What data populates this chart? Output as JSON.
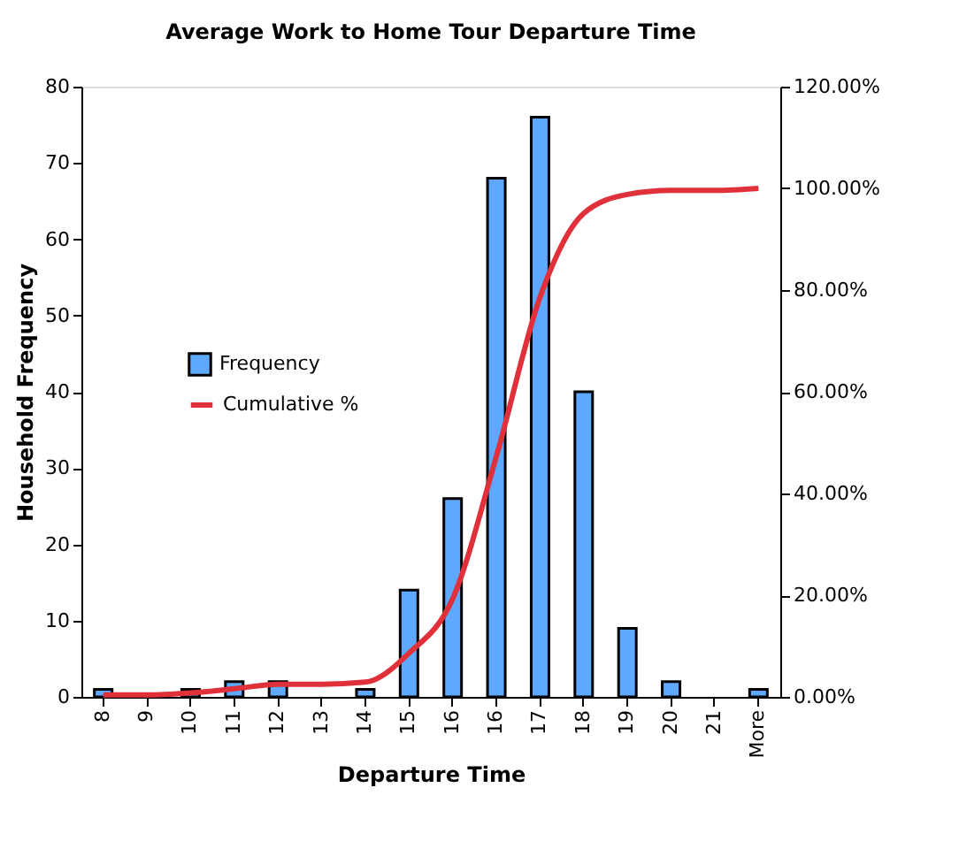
{
  "chart_data": {
    "type": "bar",
    "title": "Average Work to Home Tour Departure Time",
    "xlabel": "Departure Time",
    "ylabel": "Household Frequency",
    "categories": [
      "8",
      "9",
      "10",
      "11",
      "12",
      "13",
      "14",
      "15",
      "16",
      "16",
      "17",
      "18",
      "19",
      "20",
      "21",
      "More"
    ],
    "series": [
      {
        "name": "Frequency",
        "color": "#5ea8ff",
        "values": [
          1,
          0,
          1,
          2,
          2,
          0,
          1,
          14,
          26,
          68,
          76,
          40,
          9,
          2,
          0,
          1
        ]
      },
      {
        "name": "Cumulative %",
        "type": "line",
        "axis": "y2",
        "color": "#e0303a",
        "values": [
          0.4,
          0.4,
          0.8,
          1.6,
          2.5,
          2.5,
          2.9,
          8.6,
          19.3,
          47.3,
          78.6,
          95.1,
          98.8,
          99.6,
          99.6,
          100
        ]
      }
    ],
    "ylim": [
      0,
      80
    ],
    "yticks": [
      0,
      10,
      20,
      30,
      40,
      50,
      60,
      70,
      80
    ],
    "y2lim": [
      0,
      120
    ],
    "y2ticks": [
      {
        "value": 0,
        "label": "0.00%"
      },
      {
        "value": 20,
        "label": "20.00%"
      },
      {
        "value": 40,
        "label": "40.00%"
      },
      {
        "value": 60,
        "label": "60.00%"
      },
      {
        "value": 80,
        "label": "80.00%"
      },
      {
        "value": 100,
        "label": "100.00%"
      },
      {
        "value": 120,
        "label": "120.00%"
      }
    ],
    "grid": false,
    "legend": "left",
    "marker": "none",
    "line_style": "solid"
  }
}
